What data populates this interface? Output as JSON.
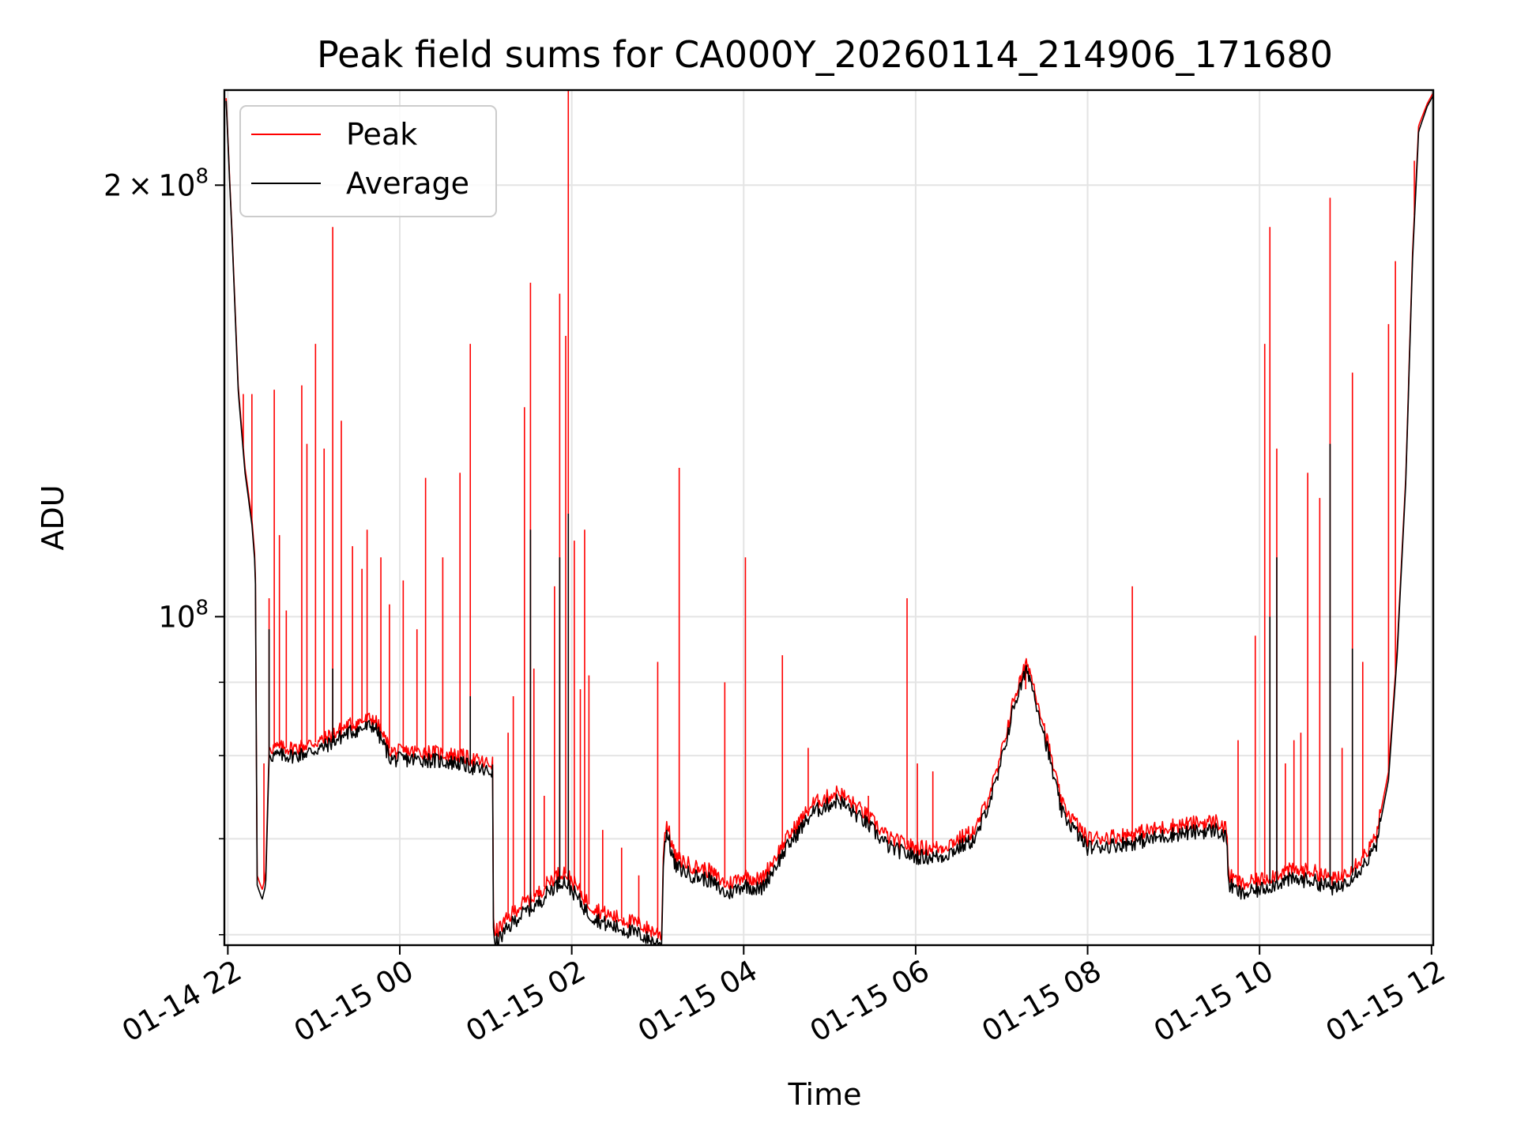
{
  "chart_data": {
    "type": "line",
    "title": "Peak field sums for CA000Y_20260114_214906_171680",
    "xlabel": "Time",
    "ylabel": "ADU",
    "yscale": "log",
    "ylim": [
      59000000,
      233000000
    ],
    "xlim_hours": [
      -2.04,
      12.02
    ],
    "grid": true,
    "legend_position": "top-left",
    "x_tick_labels": [
      {
        "hour": -2,
        "label": "01-14 22"
      },
      {
        "hour": 0,
        "label": "01-15 00"
      },
      {
        "hour": 2,
        "label": "01-15 02"
      },
      {
        "hour": 4,
        "label": "01-15 04"
      },
      {
        "hour": 6,
        "label": "01-15 06"
      },
      {
        "hour": 8,
        "label": "01-15 08"
      },
      {
        "hour": 10,
        "label": "01-15 10"
      },
      {
        "hour": 12,
        "label": "01-15 12"
      }
    ],
    "y_major_ticks": [
      {
        "value": 200000000,
        "mantissa": "2",
        "times": "×",
        "base": "10",
        "exp": "8"
      },
      {
        "value": 100000000,
        "mantissa": "",
        "times": "",
        "base": "10",
        "exp": "8"
      }
    ],
    "y_minor_grid": [
      60000000,
      70000000,
      80000000,
      90000000
    ],
    "series": [
      {
        "name": "Peak",
        "color": "#ff0000",
        "baseline_points": [
          [
            -2.02,
            230000000
          ],
          [
            -1.95,
            185000000
          ],
          [
            -1.88,
            145000000
          ],
          [
            -1.8,
            127000000
          ],
          [
            -1.72,
            117000000
          ],
          [
            -1.68,
            109000000
          ],
          [
            -1.66,
            66000000
          ],
          [
            -1.6,
            64500000
          ],
          [
            -1.56,
            66000000
          ],
          [
            -1.52,
            81000000
          ],
          [
            -1.2,
            81000000
          ],
          [
            -0.9,
            82000000
          ],
          [
            -0.6,
            84000000
          ],
          [
            -0.3,
            85000000
          ],
          [
            -0.1,
            80500000
          ],
          [
            0.3,
            80500000
          ],
          [
            0.7,
            80000000
          ],
          [
            1.0,
            79000000
          ],
          [
            1.08,
            79000000
          ],
          [
            1.09,
            60000000
          ],
          [
            1.2,
            61000000
          ],
          [
            1.35,
            62500000
          ],
          [
            1.5,
            63500000
          ],
          [
            1.6,
            64000000
          ],
          [
            1.75,
            65500000
          ],
          [
            1.9,
            66500000
          ],
          [
            2.0,
            65500000
          ],
          [
            2.2,
            63000000
          ],
          [
            2.4,
            62000000
          ],
          [
            2.6,
            61500000
          ],
          [
            2.8,
            61000000
          ],
          [
            2.9,
            60500000
          ],
          [
            3.05,
            60000000
          ],
          [
            3.06,
            68000000
          ],
          [
            3.1,
            72000000
          ],
          [
            3.2,
            68000000
          ],
          [
            3.4,
            67000000
          ],
          [
            3.6,
            66500000
          ],
          [
            3.8,
            65000000
          ],
          [
            4.0,
            66000000
          ],
          [
            4.2,
            65500000
          ],
          [
            4.5,
            70000000
          ],
          [
            4.8,
            74000000
          ],
          [
            5.1,
            75500000
          ],
          [
            5.4,
            73000000
          ],
          [
            5.7,
            70000000
          ],
          [
            6.0,
            69000000
          ],
          [
            6.3,
            69000000
          ],
          [
            6.7,
            71000000
          ],
          [
            6.95,
            78000000
          ],
          [
            7.15,
            88000000
          ],
          [
            7.3,
            93000000
          ],
          [
            7.45,
            86000000
          ],
          [
            7.7,
            74000000
          ],
          [
            8.0,
            70000000
          ],
          [
            8.5,
            70500000
          ],
          [
            9.0,
            71500000
          ],
          [
            9.5,
            72000000
          ],
          [
            9.62,
            71000000
          ],
          [
            9.64,
            66000000
          ],
          [
            9.8,
            65000000
          ],
          [
            10.0,
            65500000
          ],
          [
            10.3,
            66500000
          ],
          [
            10.6,
            66500000
          ],
          [
            10.9,
            65500000
          ],
          [
            11.2,
            68000000
          ],
          [
            11.35,
            70000000
          ],
          [
            11.5,
            78000000
          ],
          [
            11.6,
            95000000
          ],
          [
            11.7,
            125000000
          ],
          [
            11.78,
            180000000
          ],
          [
            11.85,
            220000000
          ],
          [
            11.95,
            228000000
          ],
          [
            12.02,
            232000000
          ]
        ],
        "spikes": [
          [
            -1.82,
            143000000
          ],
          [
            -1.72,
            143000000
          ],
          [
            -1.58,
            79000000
          ],
          [
            -1.52,
            103000000
          ],
          [
            -1.46,
            144000000
          ],
          [
            -1.4,
            114000000
          ],
          [
            -1.32,
            101000000
          ],
          [
            -1.14,
            145000000
          ],
          [
            -1.08,
            132000000
          ],
          [
            -0.98,
            155000000
          ],
          [
            -0.88,
            131000000
          ],
          [
            -0.78,
            187000000
          ],
          [
            -0.68,
            137000000
          ],
          [
            -0.55,
            112000000
          ],
          [
            -0.44,
            108000000
          ],
          [
            -0.38,
            115000000
          ],
          [
            -0.22,
            110000000
          ],
          [
            -0.12,
            102000000
          ],
          [
            0.04,
            106000000
          ],
          [
            0.2,
            98000000
          ],
          [
            0.3,
            125000000
          ],
          [
            0.5,
            110000000
          ],
          [
            0.7,
            126000000
          ],
          [
            0.82,
            155000000
          ],
          [
            1.26,
            83000000
          ],
          [
            1.32,
            88000000
          ],
          [
            1.45,
            140000000
          ],
          [
            1.52,
            171000000
          ],
          [
            1.56,
            92000000
          ],
          [
            1.68,
            75000000
          ],
          [
            1.8,
            105000000
          ],
          [
            1.86,
            168000000
          ],
          [
            1.93,
            157000000
          ],
          [
            1.96,
            234000000
          ],
          [
            2.03,
            113000000
          ],
          [
            2.1,
            89000000
          ],
          [
            2.15,
            115000000
          ],
          [
            2.2,
            91000000
          ],
          [
            2.36,
            71000000
          ],
          [
            2.58,
            69000000
          ],
          [
            2.78,
            66000000
          ],
          [
            3.0,
            93000000
          ],
          [
            3.25,
            127000000
          ],
          [
            3.78,
            90000000
          ],
          [
            4.02,
            110000000
          ],
          [
            4.45,
            94000000
          ],
          [
            4.75,
            81000000
          ],
          [
            5.3,
            74000000
          ],
          [
            5.45,
            75000000
          ],
          [
            5.9,
            103000000
          ],
          [
            6.02,
            79000000
          ],
          [
            6.2,
            78000000
          ],
          [
            7.28,
            89000000
          ],
          [
            8.52,
            105000000
          ],
          [
            9.75,
            82000000
          ],
          [
            9.95,
            97000000
          ],
          [
            10.06,
            155000000
          ],
          [
            10.12,
            187000000
          ],
          [
            10.2,
            131000000
          ],
          [
            10.3,
            79000000
          ],
          [
            10.4,
            82000000
          ],
          [
            10.48,
            83000000
          ],
          [
            10.56,
            126000000
          ],
          [
            10.7,
            121000000
          ],
          [
            10.82,
            196000000
          ],
          [
            10.96,
            81000000
          ],
          [
            11.08,
            148000000
          ],
          [
            11.2,
            93000000
          ],
          [
            11.5,
            160000000
          ],
          [
            11.58,
            177000000
          ],
          [
            11.8,
            208000000
          ]
        ]
      },
      {
        "name": "Average",
        "color": "#000000",
        "baseline_points": [
          [
            -2.02,
            229000000
          ],
          [
            -1.95,
            184000000
          ],
          [
            -1.88,
            144000000
          ],
          [
            -1.8,
            126000000
          ],
          [
            -1.72,
            116000000
          ],
          [
            -1.68,
            108000000
          ],
          [
            -1.66,
            65000000
          ],
          [
            -1.6,
            63500000
          ],
          [
            -1.56,
            65000000
          ],
          [
            -1.52,
            80000000
          ],
          [
            -1.2,
            80000000
          ],
          [
            -0.9,
            81000000
          ],
          [
            -0.6,
            83000000
          ],
          [
            -0.3,
            84000000
          ],
          [
            -0.1,
            79500000
          ],
          [
            0.3,
            79500000
          ],
          [
            0.7,
            79000000
          ],
          [
            1.0,
            78000000
          ],
          [
            1.08,
            78000000
          ],
          [
            1.09,
            59000000
          ],
          [
            1.2,
            60000000
          ],
          [
            1.35,
            61500000
          ],
          [
            1.5,
            62500000
          ],
          [
            1.6,
            63000000
          ],
          [
            1.75,
            64500000
          ],
          [
            1.9,
            65500000
          ],
          [
            2.0,
            64500000
          ],
          [
            2.2,
            62000000
          ],
          [
            2.4,
            61000000
          ],
          [
            2.6,
            60500000
          ],
          [
            2.8,
            60000000
          ],
          [
            2.9,
            59500000
          ],
          [
            3.05,
            59000000
          ],
          [
            3.06,
            67000000
          ],
          [
            3.1,
            71000000
          ],
          [
            3.2,
            67000000
          ],
          [
            3.4,
            66000000
          ],
          [
            3.6,
            65500000
          ],
          [
            3.8,
            64000000
          ],
          [
            4.0,
            65000000
          ],
          [
            4.2,
            64500000
          ],
          [
            4.5,
            69000000
          ],
          [
            4.8,
            73000000
          ],
          [
            5.1,
            74500000
          ],
          [
            5.4,
            72000000
          ],
          [
            5.7,
            69000000
          ],
          [
            6.0,
            68000000
          ],
          [
            6.3,
            68000000
          ],
          [
            6.7,
            70000000
          ],
          [
            6.95,
            77000000
          ],
          [
            7.15,
            87000000
          ],
          [
            7.3,
            92000000
          ],
          [
            7.45,
            85000000
          ],
          [
            7.7,
            73000000
          ],
          [
            8.0,
            69000000
          ],
          [
            8.5,
            69500000
          ],
          [
            9.0,
            70500000
          ],
          [
            9.5,
            71000000
          ],
          [
            9.62,
            70000000
          ],
          [
            9.64,
            65000000
          ],
          [
            9.8,
            64000000
          ],
          [
            10.0,
            64500000
          ],
          [
            10.3,
            65500000
          ],
          [
            10.6,
            65500000
          ],
          [
            10.9,
            64500000
          ],
          [
            11.2,
            67000000
          ],
          [
            11.35,
            69000000
          ],
          [
            11.5,
            77000000
          ],
          [
            11.6,
            94000000
          ],
          [
            11.7,
            124000000
          ],
          [
            11.78,
            178000000
          ],
          [
            11.85,
            218000000
          ],
          [
            11.95,
            227000000
          ],
          [
            12.02,
            231000000
          ]
        ],
        "spikes": [
          [
            -1.52,
            98000000
          ],
          [
            -0.78,
            92000000
          ],
          [
            0.82,
            88000000
          ],
          [
            1.52,
            115000000
          ],
          [
            1.86,
            110000000
          ],
          [
            1.96,
            118000000
          ],
          [
            10.12,
            100000000
          ],
          [
            10.2,
            110000000
          ],
          [
            10.82,
            132000000
          ],
          [
            11.08,
            95000000
          ]
        ]
      }
    ]
  }
}
